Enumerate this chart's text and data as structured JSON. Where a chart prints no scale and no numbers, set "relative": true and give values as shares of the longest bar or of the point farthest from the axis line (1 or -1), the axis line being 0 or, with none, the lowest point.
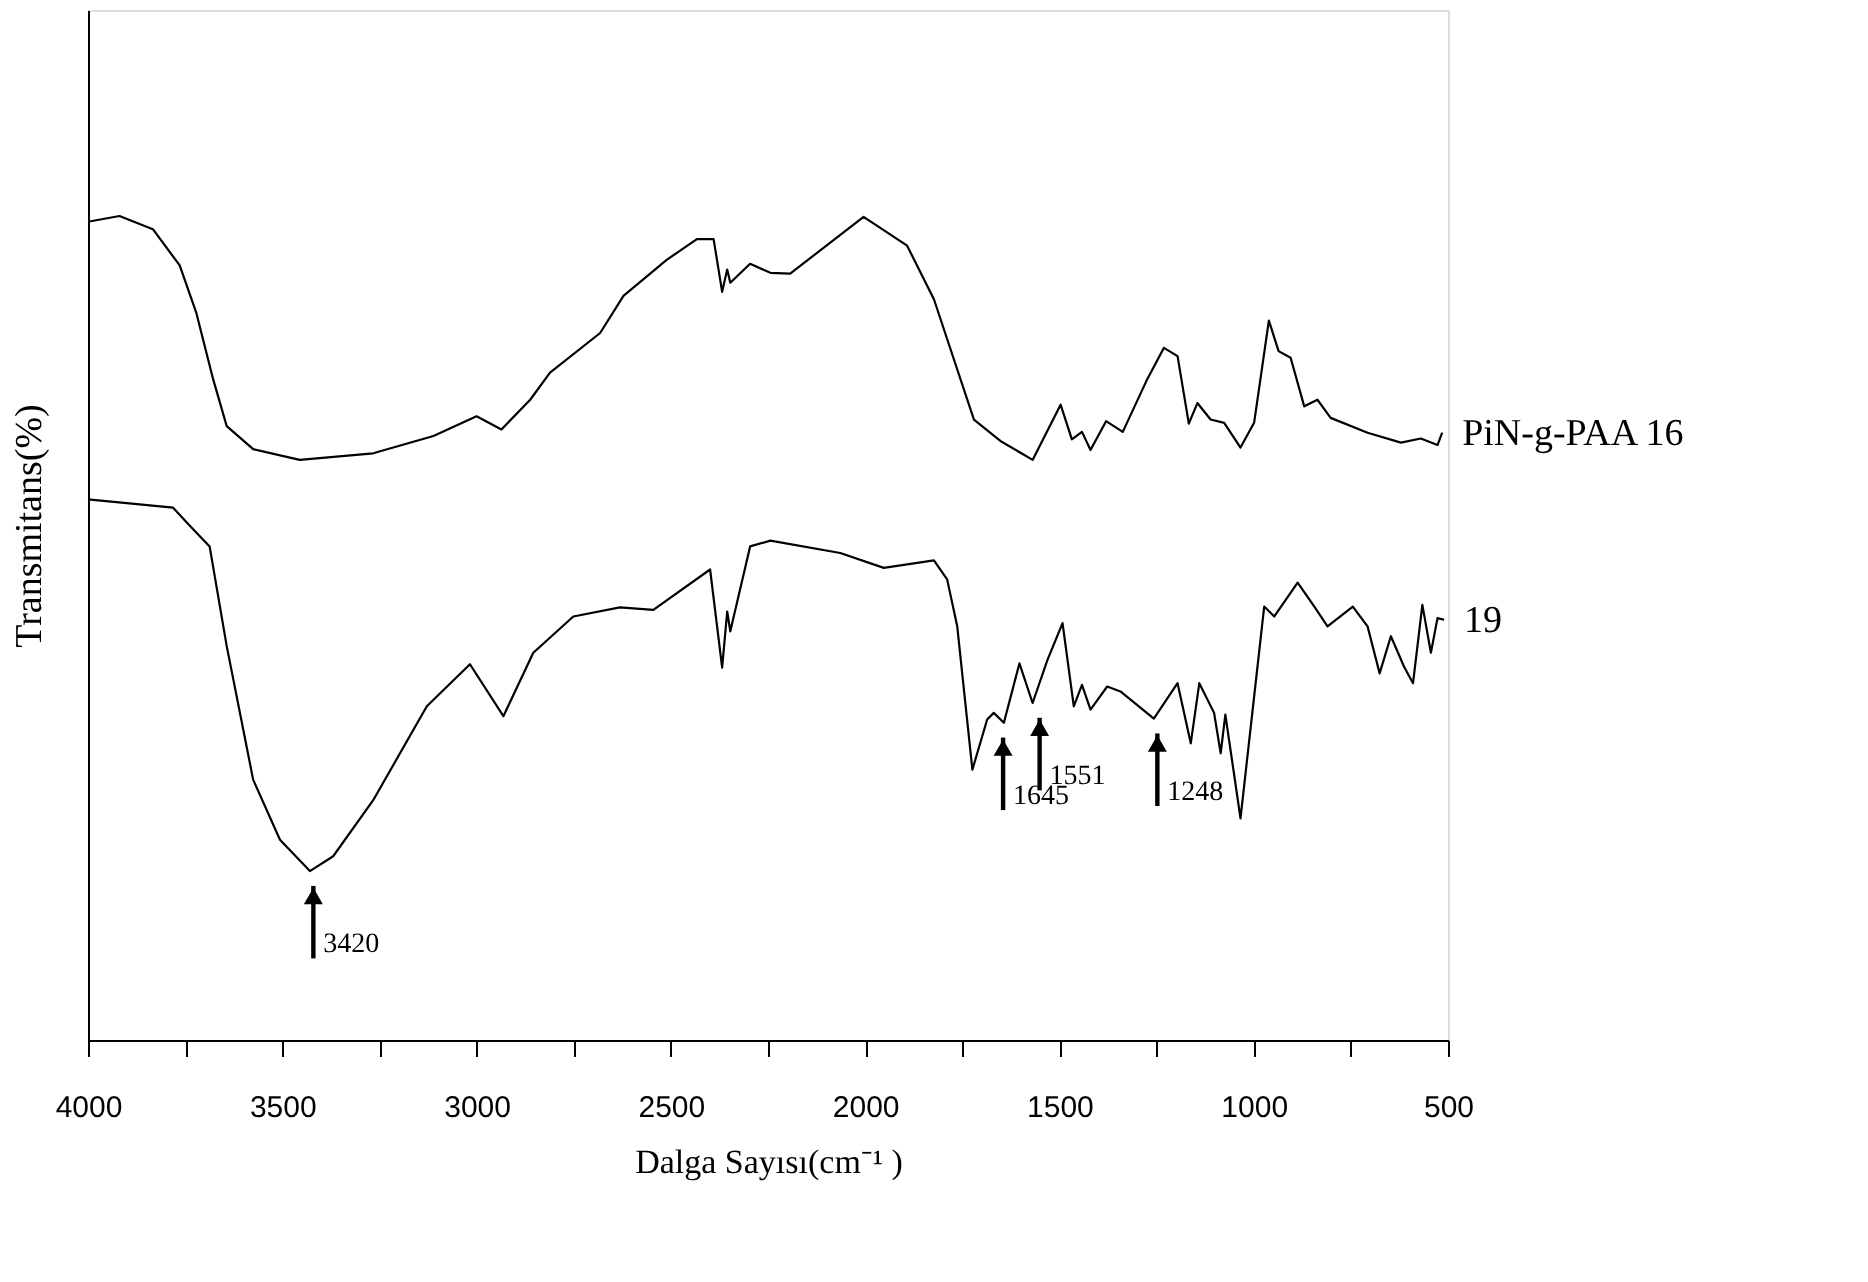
{
  "chart_data": {
    "type": "line",
    "relative": true,
    "xlabel": "Dalga Sayısı(cm⁻¹ )",
    "ylabel": "Transmitans(%)",
    "xlim": [
      4000,
      500
    ],
    "xticks": [
      4000,
      {
        "value": 3750,
        "label": null
      },
      3500,
      {
        "value": 3250,
        "label": null
      },
      3000,
      {
        "value": 2750,
        "label": null
      },
      2500,
      {
        "value": 2250,
        "label": null
      },
      2000,
      {
        "value": 1750,
        "label": null
      },
      1500,
      {
        "value": 1250,
        "label": null
      },
      1000,
      {
        "value": 750,
        "label": null
      },
      500
    ],
    "grid": false,
    "marker": "none",
    "line_style": "solid",
    "series": [
      {
        "name": "PiN-g-PAA 16",
        "color": "#000000",
        "x": [
          4000,
          3919,
          3833,
          3764,
          3721,
          3678,
          3643,
          3575,
          3455,
          3266,
          3111,
          3000,
          2936,
          2862,
          2811,
          2682,
          2622,
          2510,
          2433,
          2390,
          2368,
          2355,
          2347,
          2296,
          2244,
          2193,
          2004,
          1892,
          1823,
          1720,
          1652,
          1569,
          1497,
          1468,
          1442,
          1420,
          1380,
          1337,
          1274,
          1231,
          1196,
          1167,
          1145,
          1111,
          1076,
          1034,
          999,
          961,
          936,
          905,
          870,
          836,
          802,
          707,
          621,
          570,
          527,
          515
        ],
        "values": [
          0.993,
          1.0,
          0.984,
          0.94,
          0.882,
          0.802,
          0.745,
          0.717,
          0.704,
          0.712,
          0.733,
          0.757,
          0.741,
          0.777,
          0.81,
          0.858,
          0.903,
          0.947,
          0.972,
          0.972,
          0.908,
          0.935,
          0.919,
          0.942,
          0.931,
          0.93,
          0.999,
          0.964,
          0.899,
          0.753,
          0.727,
          0.704,
          0.771,
          0.729,
          0.738,
          0.716,
          0.751,
          0.738,
          0.802,
          0.84,
          0.83,
          0.748,
          0.773,
          0.753,
          0.749,
          0.719,
          0.749,
          0.873,
          0.836,
          0.828,
          0.769,
          0.777,
          0.755,
          0.737,
          0.725,
          0.73,
          0.722,
          0.737
        ]
      },
      {
        "name": "19",
        "color": "#000000",
        "x": [
          4000,
          3781,
          3738,
          3687,
          3643,
          3575,
          3506,
          3429,
          3369,
          3266,
          3128,
          3017,
          2931,
          2854,
          2751,
          2631,
          2545,
          2399,
          2368,
          2355,
          2347,
          2296,
          2244,
          2064,
          1952,
          1823,
          1789,
          1763,
          1724,
          1686,
          1669,
          1643,
          1603,
          1569,
          1531,
          1492,
          1463,
          1442,
          1420,
          1377,
          1343,
          1257,
          1196,
          1162,
          1140,
          1102,
          1085,
          1073,
          1034,
          973,
          947,
          887,
          844,
          810,
          745,
          707,
          676,
          647,
          613,
          590,
          566,
          544,
          527,
          510
        ],
        "values": [
          0.656,
          0.646,
          0.624,
          0.599,
          0.478,
          0.316,
          0.243,
          0.205,
          0.223,
          0.291,
          0.405,
          0.456,
          0.393,
          0.47,
          0.514,
          0.525,
          0.522,
          0.571,
          0.452,
          0.52,
          0.496,
          0.599,
          0.606,
          0.591,
          0.573,
          0.582,
          0.559,
          0.502,
          0.328,
          0.389,
          0.397,
          0.385,
          0.457,
          0.409,
          0.461,
          0.506,
          0.405,
          0.431,
          0.401,
          0.429,
          0.423,
          0.39,
          0.433,
          0.36,
          0.433,
          0.397,
          0.348,
          0.395,
          0.269,
          0.526,
          0.514,
          0.555,
          0.526,
          0.502,
          0.526,
          0.502,
          0.445,
          0.49,
          0.453,
          0.433,
          0.528,
          0.47,
          0.512,
          0.51
        ]
      }
    ],
    "annotations": [
      {
        "text": "3420",
        "x": 3420,
        "y": 0.205
      },
      {
        "text": "1645",
        "x": 1645,
        "y": 0.385
      },
      {
        "text": "1551",
        "x": 1551,
        "y": 0.409
      },
      {
        "text": "1248",
        "x": 1248,
        "y": 0.39
      }
    ]
  }
}
